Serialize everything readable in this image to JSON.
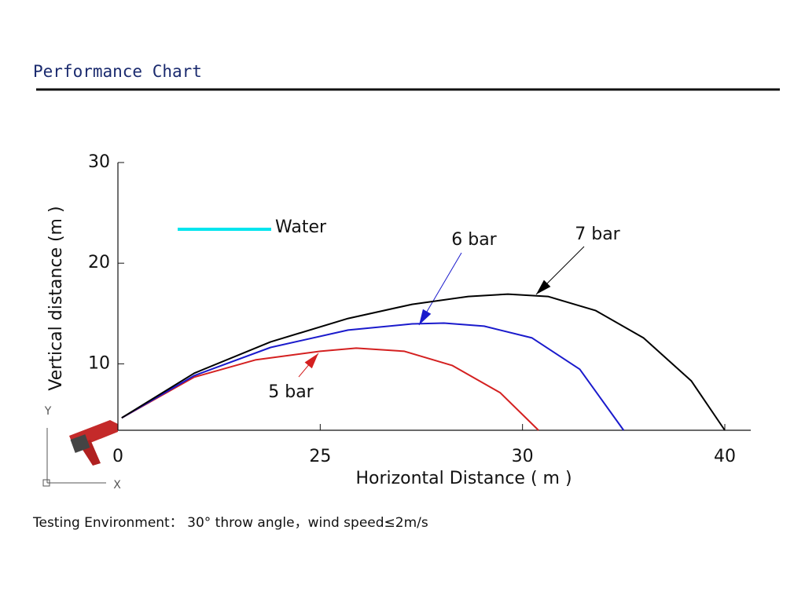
{
  "chart_data": {
    "type": "line",
    "title": "Performance Chart",
    "x_label": "Horizontal Distance ( m )",
    "y_label": "Vertical distance (m )",
    "legend": {
      "label": "Water",
      "color": "#00e5ee"
    },
    "footnote": "Testing Environment：  30°  throw angle，wind speed≤2m/s",
    "axis_icon_labels": [
      "Y",
      "X"
    ],
    "xticks": [
      0,
      25,
      30,
      40
    ],
    "xlim": [
      0,
      40
    ],
    "ylim": [
      3.4,
      30
    ],
    "yticks": [
      10,
      20,
      30
    ],
    "series": [
      {
        "name": "5 bar",
        "color": "#d42020",
        "x": [
          0.47,
          9.43,
          16.98,
          25,
          25.89,
          27.08,
          28.26,
          29.45,
          30.79
        ],
        "values": [
          4.63,
          8.68,
          10.39,
          11.25,
          11.56,
          11.25,
          9.84,
          7.12,
          3.4
        ]
      },
      {
        "name": "6 bar",
        "color": "#1a1acc",
        "x": [
          0.47,
          9.43,
          18.87,
          25.69,
          27.27,
          28.06,
          29.05,
          30.47,
          32.83,
          35.0
        ],
        "values": [
          4.63,
          8.83,
          11.63,
          13.35,
          13.97,
          14.05,
          13.74,
          12.57,
          9.46,
          3.4
        ]
      },
      {
        "name": "7 bar",
        "color": "#000000",
        "x": [
          0.47,
          9.43,
          18.87,
          25.69,
          27.27,
          28.66,
          29.64,
          31.26,
          33.62,
          35.98,
          38.35,
          40
        ],
        "values": [
          4.63,
          9.07,
          12.18,
          14.51,
          15.91,
          16.69,
          16.93,
          16.69,
          15.29,
          12.57,
          8.29,
          3.4
        ]
      }
    ]
  }
}
